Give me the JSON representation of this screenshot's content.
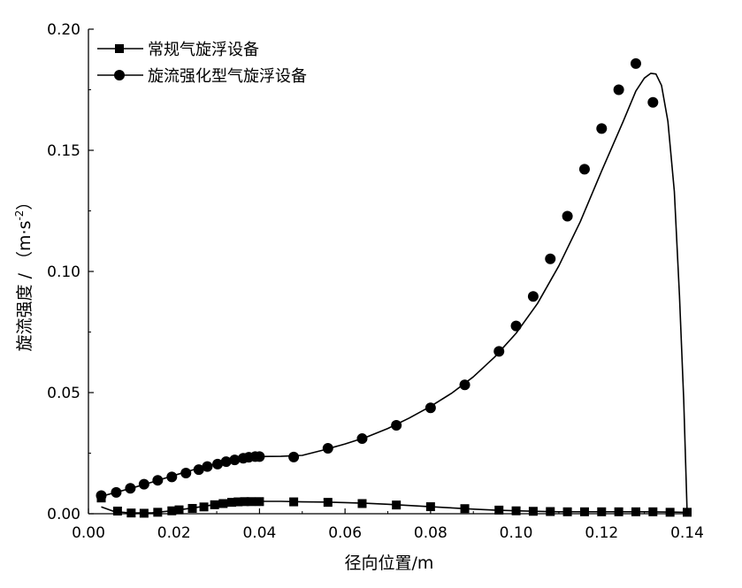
{
  "chart_data": {
    "type": "line",
    "xlabel": "径向位置/m",
    "ylabel_main": "旋流强度 / （m·s",
    "ylabel_sup": "-2",
    "ylabel_close": "）",
    "xlim": [
      0.0,
      0.14
    ],
    "ylim": [
      0.0,
      0.2
    ],
    "x_ticks": [
      0.0,
      0.02,
      0.04,
      0.06,
      0.08,
      0.1,
      0.12,
      0.14
    ],
    "x_tick_labels": [
      "0.00",
      "0.02",
      "0.04",
      "0.06",
      "0.08",
      "0.10",
      "0.12",
      "0.14"
    ],
    "y_ticks": [
      0.0,
      0.05,
      0.1,
      0.15,
      0.2
    ],
    "y_tick_labels": [
      "0.00",
      "0.05",
      "0.10",
      "0.15",
      "0.20"
    ],
    "grid": false,
    "legend_position": "top-left",
    "series": [
      {
        "name": "常规气旋浮设备",
        "marker": "square",
        "points": [
          [
            0.003,
            0.0065
          ],
          [
            0.0068,
            0.0011
          ],
          [
            0.01,
            0.0003
          ],
          [
            0.013,
            0.0002
          ],
          [
            0.0162,
            0.0006
          ],
          [
            0.0195,
            0.0012
          ],
          [
            0.0212,
            0.0016
          ],
          [
            0.0243,
            0.0022
          ],
          [
            0.027,
            0.0028
          ],
          [
            0.0295,
            0.0037
          ],
          [
            0.0315,
            0.0042
          ],
          [
            0.0335,
            0.0047
          ],
          [
            0.035,
            0.0049
          ],
          [
            0.0365,
            0.005
          ],
          [
            0.038,
            0.005
          ],
          [
            0.04,
            0.005
          ],
          [
            0.048,
            0.0049
          ],
          [
            0.056,
            0.0047
          ],
          [
            0.064,
            0.0042
          ],
          [
            0.072,
            0.0036
          ],
          [
            0.08,
            0.0029
          ],
          [
            0.088,
            0.0021
          ],
          [
            0.096,
            0.0015
          ],
          [
            0.1,
            0.0012
          ],
          [
            0.104,
            0.001
          ],
          [
            0.108,
            0.0009
          ],
          [
            0.112,
            0.0008
          ],
          [
            0.116,
            0.0008
          ],
          [
            0.12,
            0.0008
          ],
          [
            0.124,
            0.0008
          ],
          [
            0.128,
            0.0008
          ],
          [
            0.132,
            0.0008
          ],
          [
            0.136,
            0.0006
          ],
          [
            0.14,
            0.0006
          ]
        ],
        "curve": [
          [
            0.003,
            0.0028
          ],
          [
            0.006,
            0.0009
          ],
          [
            0.01,
            0.0003
          ],
          [
            0.015,
            0.0004
          ],
          [
            0.02,
            0.0013
          ],
          [
            0.025,
            0.0025
          ],
          [
            0.03,
            0.0039
          ],
          [
            0.035,
            0.0048
          ],
          [
            0.04,
            0.0051
          ],
          [
            0.045,
            0.0051
          ],
          [
            0.05,
            0.0049
          ],
          [
            0.055,
            0.0048
          ],
          [
            0.06,
            0.0046
          ],
          [
            0.065,
            0.0043
          ],
          [
            0.07,
            0.0039
          ],
          [
            0.075,
            0.0034
          ],
          [
            0.08,
            0.0029
          ],
          [
            0.085,
            0.0024
          ],
          [
            0.09,
            0.0019
          ],
          [
            0.095,
            0.0015
          ],
          [
            0.1,
            0.0012
          ],
          [
            0.105,
            0.001
          ],
          [
            0.11,
            0.0008
          ],
          [
            0.115,
            0.0008
          ],
          [
            0.12,
            0.0008
          ],
          [
            0.125,
            0.0008
          ],
          [
            0.13,
            0.0008
          ],
          [
            0.135,
            0.0007
          ],
          [
            0.14,
            0.0006
          ]
        ]
      },
      {
        "name": "旋流强化型气旋浮设备",
        "marker": "circle",
        "points": [
          [
            0.003,
            0.0075
          ],
          [
            0.0065,
            0.0088
          ],
          [
            0.0098,
            0.0105
          ],
          [
            0.013,
            0.0122
          ],
          [
            0.0162,
            0.0138
          ],
          [
            0.0195,
            0.0152
          ],
          [
            0.0228,
            0.0168
          ],
          [
            0.0258,
            0.0182
          ],
          [
            0.0278,
            0.0195
          ],
          [
            0.0302,
            0.0205
          ],
          [
            0.0322,
            0.0215
          ],
          [
            0.0342,
            0.0222
          ],
          [
            0.0362,
            0.0229
          ],
          [
            0.0375,
            0.0233
          ],
          [
            0.039,
            0.0236
          ],
          [
            0.04,
            0.0236
          ],
          [
            0.048,
            0.0234
          ],
          [
            0.056,
            0.027
          ],
          [
            0.064,
            0.031
          ],
          [
            0.072,
            0.0365
          ],
          [
            0.08,
            0.0437
          ],
          [
            0.088,
            0.0532
          ],
          [
            0.096,
            0.067
          ],
          [
            0.1,
            0.0775
          ],
          [
            0.104,
            0.0897
          ],
          [
            0.108,
            0.1052
          ],
          [
            0.112,
            0.1228
          ],
          [
            0.116,
            0.1422
          ],
          [
            0.12,
            0.159
          ],
          [
            0.124,
            0.175
          ],
          [
            0.128,
            0.1858
          ],
          [
            0.132,
            0.1698
          ]
        ],
        "curve": [
          [
            0.003,
            0.0072
          ],
          [
            0.006,
            0.0086
          ],
          [
            0.01,
            0.0105
          ],
          [
            0.015,
            0.0131
          ],
          [
            0.02,
            0.0158
          ],
          [
            0.025,
            0.0184
          ],
          [
            0.03,
            0.0208
          ],
          [
            0.035,
            0.0227
          ],
          [
            0.04,
            0.0236
          ],
          [
            0.045,
            0.0237
          ],
          [
            0.05,
            0.0241
          ],
          [
            0.055,
            0.0263
          ],
          [
            0.06,
            0.0288
          ],
          [
            0.065,
            0.0316
          ],
          [
            0.07,
            0.0352
          ],
          [
            0.075,
            0.0395
          ],
          [
            0.08,
            0.0443
          ],
          [
            0.085,
            0.0498
          ],
          [
            0.09,
            0.0565
          ],
          [
            0.095,
            0.0647
          ],
          [
            0.1,
            0.0745
          ],
          [
            0.105,
            0.0868
          ],
          [
            0.11,
            0.1023
          ],
          [
            0.115,
            0.1205
          ],
          [
            0.12,
            0.1415
          ],
          [
            0.125,
            0.1618
          ],
          [
            0.128,
            0.1745
          ],
          [
            0.13,
            0.1798
          ],
          [
            0.1315,
            0.1818
          ],
          [
            0.1327,
            0.1815
          ],
          [
            0.134,
            0.1768
          ],
          [
            0.1355,
            0.162
          ],
          [
            0.137,
            0.133
          ],
          [
            0.1382,
            0.09
          ],
          [
            0.1392,
            0.047
          ],
          [
            0.14,
            0.0
          ]
        ]
      }
    ]
  }
}
